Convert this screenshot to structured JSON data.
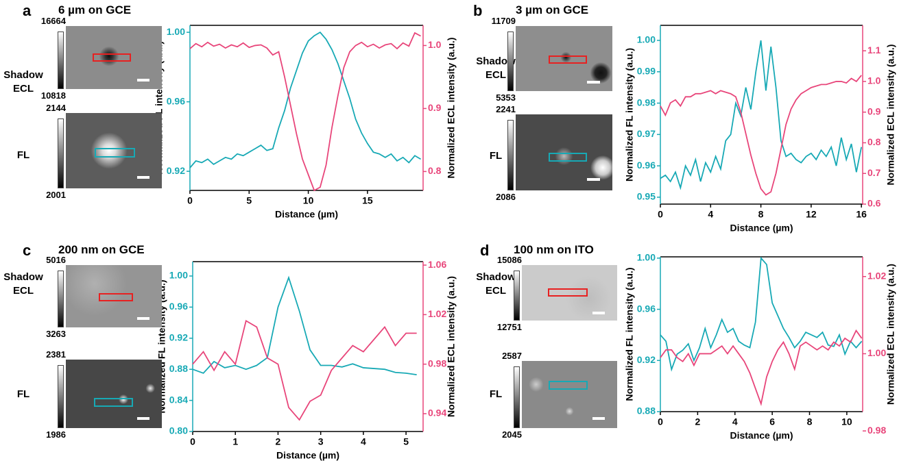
{
  "chart_data": [
    {
      "type": "line",
      "panel_label": "a",
      "title": "6 µm on GCE",
      "images": [
        {
          "label": "Shadow ECL",
          "colorbar_max": 16664,
          "colorbar_min": 10818
        },
        {
          "label": "FL",
          "colorbar_max": 2144,
          "colorbar_min": 2001
        }
      ],
      "xlabel": "Distance (µm)",
      "ylabel": "Normalized FL intensity (a.u.)",
      "y2label": "Normalized ECL intensity (a.u.)",
      "xlim": [
        0,
        19.7
      ],
      "xticks": [
        0,
        5,
        10,
        15
      ],
      "ylim": [
        0.909,
        1.004
      ],
      "yticks": [
        0.92,
        0.96,
        {
          "value": 1,
          "label": "1.00"
        }
      ],
      "y2lim": [
        0.77,
        1.032
      ],
      "y2ticks": [
        0.8,
        0.9,
        {
          "value": 1,
          "label": "1.0"
        }
      ],
      "x": [
        0,
        0.5,
        1,
        1.5,
        2,
        2.5,
        3,
        3.5,
        4,
        4.5,
        5,
        5.5,
        6,
        6.5,
        7,
        7.5,
        8,
        8.5,
        9,
        9.5,
        10,
        10.5,
        11,
        11.5,
        12,
        12.5,
        13,
        13.5,
        14,
        14.5,
        15,
        15.5,
        16,
        16.5,
        17,
        17.5,
        18,
        18.5,
        19,
        19.5
      ],
      "series": [
        {
          "color": "#17a9b5",
          "axis": "y",
          "values": [
            0.922,
            0.926,
            0.925,
            0.927,
            0.924,
            0.926,
            0.928,
            0.927,
            0.93,
            0.929,
            0.931,
            0.933,
            0.935,
            0.932,
            0.933,
            0.945,
            0.955,
            0.968,
            0.978,
            0.988,
            0.995,
            0.998,
            1.0,
            0.996,
            0.99,
            0.982,
            0.972,
            0.962,
            0.95,
            0.942,
            0.936,
            0.931,
            0.93,
            0.928,
            0.93,
            0.926,
            0.928,
            0.925,
            0.929,
            0.927
          ]
        },
        {
          "color": "#e8457a",
          "axis": "y2",
          "values": [
            0.995,
            1.003,
            0.998,
            1.005,
            0.999,
            1.002,
            0.996,
            1.001,
            0.998,
            1.004,
            0.997,
            1.0,
            1.001,
            0.996,
            0.985,
            0.99,
            0.95,
            0.905,
            0.86,
            0.82,
            0.795,
            0.77,
            0.775,
            0.81,
            0.87,
            0.92,
            0.965,
            0.99,
            1.0,
            1.005,
            0.998,
            1.002,
            0.996,
            1.001,
            1.003,
            0.995,
            1.004,
            0.999,
            1.02,
            1.015
          ]
        }
      ]
    },
    {
      "type": "line",
      "panel_label": "b",
      "title": "3 µm on GCE",
      "images": [
        {
          "label": "Shadow ECL",
          "colorbar_max": 11709,
          "colorbar_min": 5353
        },
        {
          "label": "FL",
          "colorbar_max": 2241,
          "colorbar_min": 2086
        }
      ],
      "xlabel": "Distance (µm)",
      "ylabel": "Normalized FL intensity (a.u.)",
      "y2label": "Normalized ECL intensity (a.u.)",
      "xlim": [
        0,
        16.1
      ],
      "xticks": [
        0,
        4,
        8,
        12,
        16
      ],
      "ylim": [
        0.9478,
        1.0048
      ],
      "yticks": [
        0.95,
        0.96,
        0.97,
        0.98,
        0.99,
        {
          "value": 1,
          "label": "1.00"
        }
      ],
      "y2lim": [
        0.6,
        1.183
      ],
      "y2ticks": [
        0.6,
        0.7,
        0.8,
        0.9,
        {
          "value": 1,
          "label": "1.0"
        },
        1.1
      ],
      "x": [
        0,
        0.4,
        0.8,
        1.2,
        1.6,
        2,
        2.4,
        2.8,
        3.2,
        3.6,
        4,
        4.4,
        4.8,
        5.2,
        5.6,
        6,
        6.4,
        6.8,
        7.2,
        7.6,
        8,
        8.4,
        8.8,
        9.2,
        9.6,
        10,
        10.4,
        10.8,
        11.2,
        11.6,
        12,
        12.4,
        12.8,
        13.2,
        13.6,
        14,
        14.4,
        14.8,
        15.2,
        15.6,
        16
      ],
      "series": [
        {
          "color": "#17a9b5",
          "axis": "y",
          "values": [
            0.956,
            0.957,
            0.955,
            0.958,
            0.953,
            0.96,
            0.957,
            0.962,
            0.955,
            0.961,
            0.958,
            0.963,
            0.959,
            0.968,
            0.97,
            0.98,
            0.976,
            0.985,
            0.978,
            0.99,
            1.0,
            0.984,
            0.998,
            0.985,
            0.968,
            0.963,
            0.964,
            0.962,
            0.961,
            0.963,
            0.964,
            0.962,
            0.965,
            0.963,
            0.966,
            0.96,
            0.969,
            0.962,
            0.967,
            0.958,
            0.966
          ]
        },
        {
          "color": "#e8457a",
          "axis": "y2",
          "values": [
            0.92,
            0.89,
            0.93,
            0.94,
            0.92,
            0.95,
            0.95,
            0.96,
            0.96,
            0.965,
            0.97,
            0.96,
            0.97,
            0.965,
            0.96,
            0.95,
            0.9,
            0.83,
            0.76,
            0.7,
            0.65,
            0.63,
            0.64,
            0.7,
            0.78,
            0.86,
            0.91,
            0.94,
            0.96,
            0.97,
            0.98,
            0.985,
            0.99,
            0.99,
            0.995,
            1.0,
            1.0,
            0.995,
            1.01,
            1.0,
            1.02
          ]
        }
      ]
    },
    {
      "type": "line",
      "panel_label": "c",
      "title": "200 nm on GCE",
      "images": [
        {
          "label": "Shadow ECL",
          "colorbar_max": 5016,
          "colorbar_min": 3263
        },
        {
          "label": "FL",
          "colorbar_max": 2381,
          "colorbar_min": 1986
        }
      ],
      "xlabel": "Distance (µm)",
      "ylabel": "Normalized FL intensity (a.u.)",
      "y2label": "Normalized ECL intensity (a.u.)",
      "xlim": [
        0,
        5.4
      ],
      "xticks": [
        0,
        1,
        2,
        3,
        4,
        5
      ],
      "ylim": [
        0.8,
        1.0185
      ],
      "yticks": [
        {
          "value": 0.8,
          "label": "0.80"
        },
        0.84,
        0.88,
        0.92,
        0.96,
        {
          "value": 1,
          "label": "1.00"
        }
      ],
      "y2lim": [
        0.9256,
        1.0628
      ],
      "y2ticks": [
        0.94,
        0.98,
        1.02,
        1.06
      ],
      "x": [
        0,
        0.25,
        0.5,
        0.75,
        1,
        1.25,
        1.5,
        1.75,
        2,
        2.25,
        2.5,
        2.75,
        3,
        3.25,
        3.5,
        3.75,
        4,
        4.25,
        4.5,
        4.75,
        5,
        5.25
      ],
      "series": [
        {
          "color": "#17a9b5",
          "axis": "y",
          "values": [
            0.88,
            0.875,
            0.89,
            0.882,
            0.885,
            0.88,
            0.885,
            0.895,
            0.96,
            0.998,
            0.955,
            0.905,
            0.885,
            0.885,
            0.883,
            0.887,
            0.882,
            0.881,
            0.88,
            0.876,
            0.875,
            0.873
          ]
        },
        {
          "color": "#e8457a",
          "axis": "y2",
          "values": [
            0.98,
            0.99,
            0.975,
            0.99,
            0.98,
            1.015,
            1.01,
            0.985,
            0.98,
            0.945,
            0.935,
            0.95,
            0.955,
            0.975,
            0.985,
            0.995,
            0.99,
            1.0,
            1.01,
            0.995,
            1.005,
            1.005
          ]
        }
      ]
    },
    {
      "type": "line",
      "panel_label": "d",
      "title": "100 nm on ITO",
      "images": [
        {
          "label": "Shadow ECL",
          "colorbar_max": 15086,
          "colorbar_min": 12751
        },
        {
          "label": "FL",
          "colorbar_max": 2587,
          "colorbar_min": 2045
        }
      ],
      "xlabel": "Distance (µm)",
      "ylabel": "Normalized FL intensity (a.u.)",
      "y2label": "Normalized ECL intensity (a.u.)",
      "xlim": [
        0,
        10.85
      ],
      "xticks": [
        0,
        2,
        4,
        6,
        8,
        10
      ],
      "ylim": [
        0.88,
        1.001
      ],
      "yticks": [
        0.88,
        0.92,
        0.96,
        {
          "value": 1,
          "label": "1.00"
        }
      ],
      "y2lim": [
        0.985,
        1.0251
      ],
      "y2ticks": [
        0.98,
        {
          "value": 1,
          "label": "1.00"
        },
        1.02
      ],
      "x": [
        0,
        0.3,
        0.6,
        0.9,
        1.2,
        1.5,
        1.8,
        2.1,
        2.4,
        2.7,
        3,
        3.3,
        3.6,
        3.9,
        4.2,
        4.5,
        4.8,
        5.1,
        5.4,
        5.7,
        6,
        6.3,
        6.6,
        6.9,
        7.2,
        7.5,
        7.8,
        8.1,
        8.4,
        8.7,
        9,
        9.3,
        9.6,
        9.9,
        10.2,
        10.5,
        10.8
      ],
      "series": [
        {
          "color": "#17a9b5",
          "axis": "y",
          "values": [
            0.94,
            0.935,
            0.913,
            0.925,
            0.928,
            0.933,
            0.92,
            0.93,
            0.945,
            0.93,
            0.94,
            0.952,
            0.942,
            0.945,
            0.935,
            0.932,
            0.93,
            0.95,
            1.0,
            0.995,
            0.965,
            0.955,
            0.945,
            0.938,
            0.93,
            0.935,
            0.942,
            0.94,
            0.938,
            0.942,
            0.932,
            0.931,
            0.94,
            0.925,
            0.935,
            0.93,
            0.935
          ]
        },
        {
          "color": "#e8457a",
          "axis": "y2",
          "values": [
            0.999,
            1.001,
            1.001,
            0.999,
            0.998,
            1.0,
            0.997,
            1.0,
            1.0,
            1.0,
            1.001,
            1.002,
            1.0,
            1.002,
            1.0,
            0.998,
            0.995,
            0.991,
            0.987,
            0.994,
            0.998,
            1.001,
            1.003,
            1.0,
            0.996,
            1.002,
            1.003,
            1.002,
            1.001,
            1.002,
            1.001,
            1.003,
            1.002,
            1.004,
            1.003,
            1.006,
            1.004
          ]
        }
      ]
    }
  ]
}
